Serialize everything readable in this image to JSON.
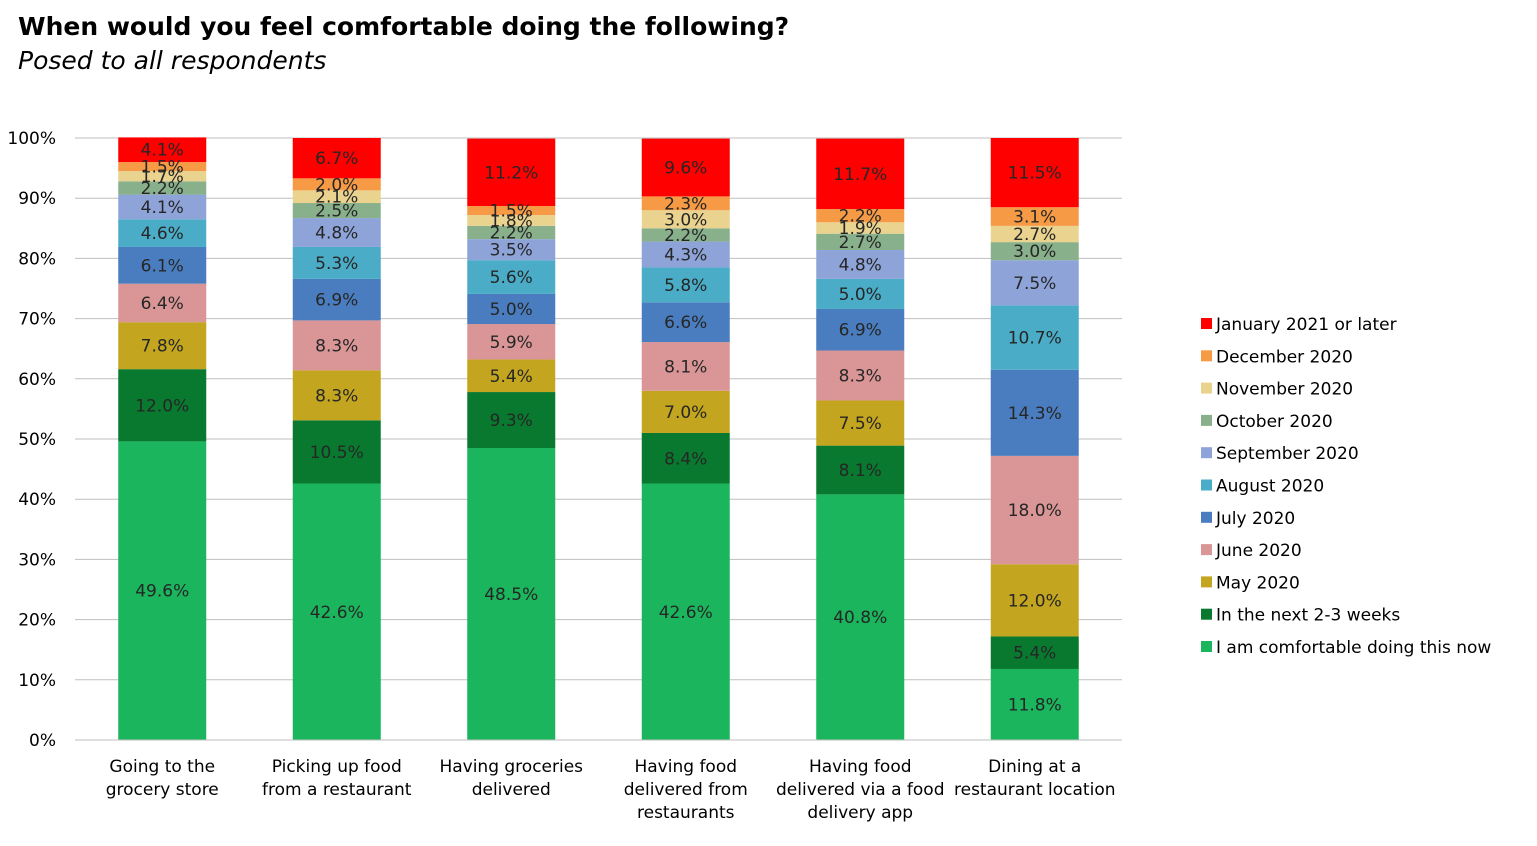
{
  "chart_data": {
    "type": "bar",
    "stacked": true,
    "title": "When would you feel comfortable doing the following?",
    "subtitle": "Posed to all respondents",
    "ylim": [
      0,
      100
    ],
    "y_ticks": [
      "0%",
      "10%",
      "20%",
      "30%",
      "40%",
      "50%",
      "60%",
      "70%",
      "80%",
      "90%",
      "100%"
    ],
    "grid": true,
    "legend_position": "right",
    "categories": [
      [
        "Going to the",
        "grocery store"
      ],
      [
        "Picking up food",
        "from a restaurant"
      ],
      [
        "Having groceries",
        "delivered"
      ],
      [
        "Having food",
        "delivered from",
        "restaurants"
      ],
      [
        "Having food",
        "delivered via a food",
        "delivery app"
      ],
      [
        "Dining at a",
        "restaurant location"
      ]
    ],
    "series": [
      {
        "name": "I am comfortable doing this now",
        "color": "#1AB55C",
        "values": [
          49.6,
          42.6,
          48.5,
          42.6,
          40.8,
          11.8
        ]
      },
      {
        "name": "In the next 2-3 weeks",
        "color": "#08792E",
        "values": [
          12.0,
          10.5,
          9.3,
          8.4,
          8.1,
          5.4
        ]
      },
      {
        "name": "May 2020",
        "color": "#C3A51F",
        "values": [
          7.8,
          8.3,
          5.4,
          7.0,
          7.5,
          12.0
        ]
      },
      {
        "name": "June 2020",
        "color": "#DA9696",
        "values": [
          6.4,
          8.3,
          5.9,
          8.1,
          8.3,
          18.0
        ]
      },
      {
        "name": "July 2020",
        "color": "#4A7DBF",
        "values": [
          6.1,
          6.9,
          5.0,
          6.6,
          6.9,
          14.3
        ]
      },
      {
        "name": "August 2020",
        "color": "#4AACC6",
        "values": [
          4.6,
          5.3,
          5.6,
          5.8,
          5.0,
          10.7
        ]
      },
      {
        "name": "September 2020",
        "color": "#8EA4D9",
        "values": [
          4.1,
          4.8,
          3.5,
          4.3,
          4.8,
          7.5
        ]
      },
      {
        "name": "October 2020",
        "color": "#88B08A",
        "values": [
          2.2,
          2.5,
          2.2,
          2.2,
          2.7,
          3.0
        ]
      },
      {
        "name": "November 2020",
        "color": "#E9D38F",
        "values": [
          1.7,
          2.1,
          1.8,
          3.0,
          1.9,
          2.7
        ]
      },
      {
        "name": "December 2020",
        "color": "#F79A45",
        "values": [
          1.5,
          2.0,
          1.5,
          2.3,
          2.2,
          3.1
        ]
      },
      {
        "name": "January 2021 or later",
        "color": "#FF0000",
        "values": [
          4.1,
          6.7,
          11.2,
          9.6,
          11.7,
          11.5
        ]
      }
    ],
    "data_labels": [
      [
        "49.6%",
        "42.6%",
        "48.5%",
        "42.6%",
        "40.8%",
        "11.8%"
      ],
      [
        "12.0%",
        "10.5%",
        "9.3%",
        "8.4%",
        "8.1%",
        "5.4%"
      ],
      [
        "7.8%",
        "8.3%",
        "5.4%",
        "7.0%",
        "7.5%",
        "12.0%"
      ],
      [
        "6.4%",
        "8.3%",
        "5.9%",
        "8.1%",
        "8.3%",
        "18.0%"
      ],
      [
        "6.1%",
        "6.9%",
        "5.0%",
        "6.6%",
        "6.9%",
        "14.3%"
      ],
      [
        "4.6%",
        "5.3%",
        "5.6%",
        "5.8%",
        "5.0%",
        "10.7%"
      ],
      [
        "4.1%",
        "4.8%",
        "3.5%",
        "4.3%",
        "4.8%",
        "7.5%"
      ],
      [
        "2.2%",
        "2.5%",
        "2.2%",
        "2.2%",
        "2.7%",
        "3.0%"
      ],
      [
        "1.7%",
        "2.1%",
        "1.8%",
        "3.0%",
        "1.9%",
        "2.7%"
      ],
      [
        "1.5%",
        "2.0%",
        "1.5%",
        "2.3%",
        "2.2%",
        "3.1%"
      ],
      [
        "4.1%",
        "6.7%",
        "11.2%",
        "9.6%",
        "11.7%",
        "11.5%"
      ]
    ]
  }
}
